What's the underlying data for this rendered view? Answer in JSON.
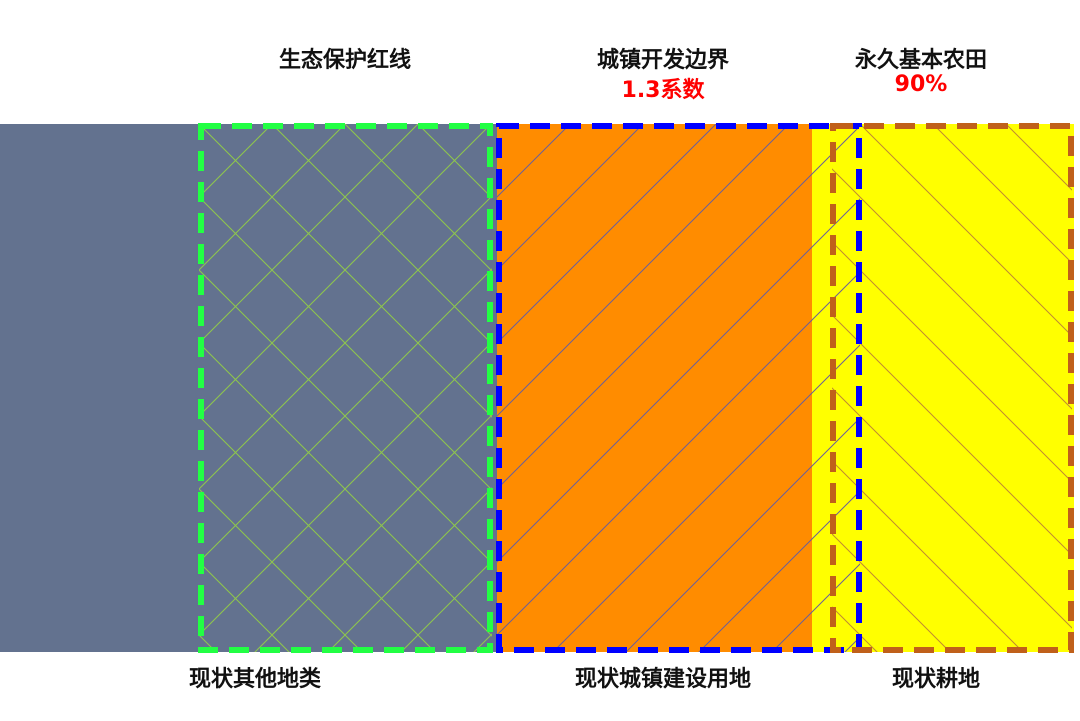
{
  "top_labels": {
    "ecological": {
      "title": "生态保护红线"
    },
    "urban": {
      "title": "城镇开发边界",
      "note": "1.3系数"
    },
    "farmland": {
      "title": "永久基本农田",
      "note": "90%"
    }
  },
  "bottom_labels": {
    "other": "现状其他地类",
    "urban": "现状城镇建设用地",
    "farmland": "现状耕地"
  },
  "colors": {
    "other_land": "#63728f",
    "urban_land": "#ff8c00",
    "farmland": "#ffff00",
    "ecological_boundary": "#22ff44",
    "urban_boundary": "#0000ff",
    "farmland_boundary": "#c0601a",
    "note_text": "#ff0000"
  }
}
